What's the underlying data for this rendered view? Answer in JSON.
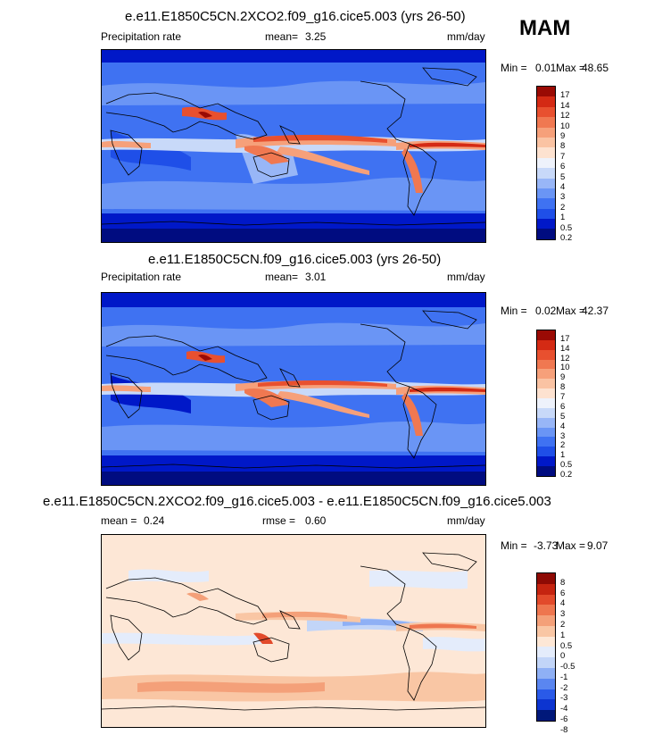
{
  "season": "MAM",
  "palettes": {
    "precip": [
      "#000c80",
      "#0018c8",
      "#1f4fe8",
      "#3f72f2",
      "#6a95f5",
      "#98b6f7",
      "#c8d9f9",
      "#eef2fb",
      "#fde2d0",
      "#fac3a3",
      "#f6a07a",
      "#f07851",
      "#e8502f",
      "#d42a14",
      "#9a0a04"
    ],
    "diff": [
      "#00187a",
      "#0c34d0",
      "#2a5ae8",
      "#5a86f0",
      "#8fb0f5",
      "#c2d5f8",
      "#e4ecfb",
      "#fde7d6",
      "#f9c6a4",
      "#f4a079",
      "#ee764f",
      "#e24a2b",
      "#c52410",
      "#8e0a04"
    ]
  },
  "panels": [
    {
      "title": "e.e11.E1850C5CN.2XCO2.f09_g16.cice5.003 (yrs 26-50)",
      "variable": "Precipitation rate",
      "mean_label": "mean=",
      "mean_value": "3.25",
      "units": "mm/day",
      "min_label": "Min =",
      "min_value": "0.01",
      "max_label": "Max =",
      "max_value": "48.65",
      "levels": [
        "17",
        "14",
        "12",
        "10",
        "9",
        "8",
        "7",
        "6",
        "5",
        "4",
        "3",
        "2",
        "1",
        "0.5",
        "0.2"
      ]
    },
    {
      "title": "e.e11.E1850C5CN.f09_g16.cice5.003 (yrs 26-50)",
      "variable": "Precipitation rate",
      "mean_label": "mean=",
      "mean_value": "3.01",
      "units": "mm/day",
      "min_label": "Min =",
      "min_value": "0.02",
      "max_label": "Max =",
      "max_value": "42.37",
      "levels": [
        "17",
        "14",
        "12",
        "10",
        "9",
        "8",
        "7",
        "6",
        "5",
        "4",
        "3",
        "2",
        "1",
        "0.5",
        "0.2"
      ]
    },
    {
      "title": "e.e11.E1850C5CN.2XCO2.f09_g16.cice5.003 - e.e11.E1850C5CN.f09_g16.cice5.003",
      "mean_label": "mean =",
      "mean_value": "0.24",
      "rmse_label": "rmse =",
      "rmse_value": "0.60",
      "units": "mm/day",
      "min_label": "Min =",
      "min_value": "-3.73",
      "max_label": "Max =",
      "max_value": "9.07",
      "levels": [
        "8",
        "6",
        "4",
        "3",
        "2",
        "1",
        "0.5",
        "0",
        "-0.5",
        "-1",
        "-2",
        "-3",
        "-4",
        "-6",
        "-8"
      ]
    }
  ],
  "chart_data": [
    {
      "type": "heatmap",
      "title": "e.e11.E1850C5CN.2XCO2.f09_g16.cice5.003 (yrs 26-50)",
      "variable": "Precipitation rate",
      "units": "mm/day",
      "season": "MAM",
      "mean": 3.25,
      "min": 0.01,
      "max": 48.65,
      "contour_levels": [
        0.2,
        0.5,
        1,
        2,
        3,
        4,
        5,
        6,
        7,
        8,
        9,
        10,
        12,
        14,
        17
      ]
    },
    {
      "type": "heatmap",
      "title": "e.e11.E1850C5CN.f09_g16.cice5.003 (yrs 26-50)",
      "variable": "Precipitation rate",
      "units": "mm/day",
      "season": "MAM",
      "mean": 3.01,
      "min": 0.02,
      "max": 42.37,
      "contour_levels": [
        0.2,
        0.5,
        1,
        2,
        3,
        4,
        5,
        6,
        7,
        8,
        9,
        10,
        12,
        14,
        17
      ]
    },
    {
      "type": "heatmap",
      "title": "e.e11.E1850C5CN.2XCO2.f09_g16.cice5.003 - e.e11.E1850C5CN.f09_g16.cice5.003",
      "units": "mm/day",
      "mean": 0.24,
      "rmse": 0.6,
      "min": -3.73,
      "max": 9.07,
      "contour_levels": [
        -8,
        -6,
        -4,
        -3,
        -2,
        -1,
        -0.5,
        0,
        0.5,
        1,
        2,
        3,
        4,
        6,
        8
      ]
    }
  ]
}
